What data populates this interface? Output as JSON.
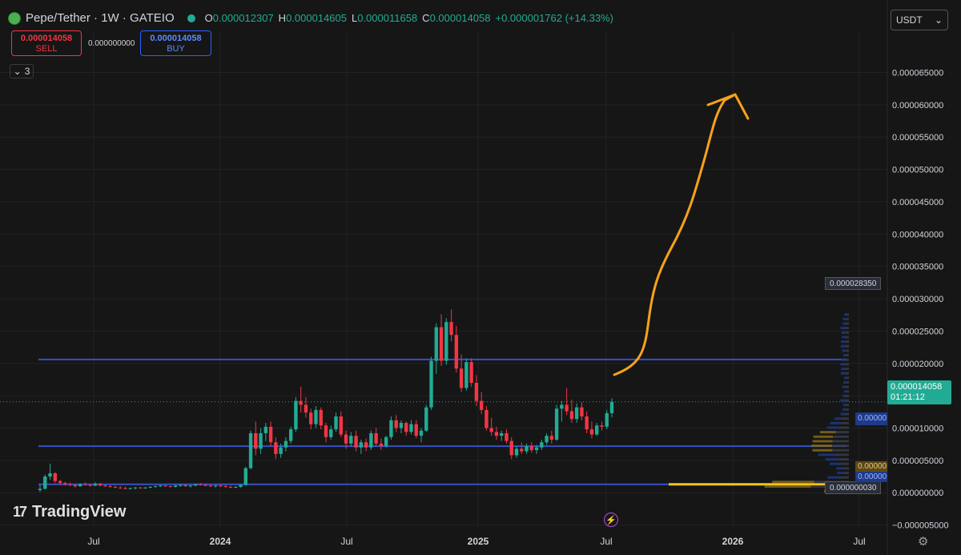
{
  "header": {
    "title": "Pepe/Tether · 1W · GATEIO",
    "open_label": "O",
    "open": "0.000012307",
    "high_label": "H",
    "high": "0.000014605",
    "low_label": "L",
    "low": "0.000011658",
    "close_label": "C",
    "close": "0.000014058",
    "change": "+0.000001762 (+14.33%)"
  },
  "trade": {
    "sell_price": "0.000014058",
    "sell_label": "SELL",
    "spread": "0.000000000",
    "buy_price": "0.000014058",
    "buy_label": "BUY"
  },
  "indicators": {
    "count": "3"
  },
  "currency": {
    "selected": "USDT"
  },
  "brand": {
    "name": "TradingView"
  },
  "price_label": {
    "value": "0.000014058",
    "countdown": "01:21:12"
  },
  "markers": {
    "high_tag": "0.000028350",
    "low_tag": "0.000000030",
    "vp_blue": "0.00000",
    "vp_gold": "0.00000",
    "vp_blue2": "0.00000"
  },
  "colors": {
    "bull": "#22ab94",
    "bear": "#f23645",
    "hline": "#3550c8",
    "arrow": "#f7a21b",
    "grid": "#222222",
    "text": "#d1d4dc"
  },
  "icons": {
    "bolt": "lightning-icon",
    "settings": "gear-icon",
    "chevron": "chevron-down-icon"
  },
  "chart_data": {
    "type": "candlestick",
    "y_axis_ticks": [
      "0.000065000",
      "0.000060000",
      "0.000055000",
      "0.000050000",
      "0.000045000",
      "0.000040000",
      "0.000035000",
      "0.000030000",
      "0.000025000",
      "0.000020000",
      "0.000015000",
      "0.000010000",
      "0.000005000",
      "0.000000000",
      "−0.000005000"
    ],
    "ylim": [
      -5.3e-06,
      7.15e-05
    ],
    "x_axis_ticks": [
      "Jul",
      "2024",
      "Jul",
      "2025",
      "Jul",
      "2026",
      "Jul"
    ],
    "horizontal_levels": [
      2.06e-05,
      7.2e-06,
      1.3e-06
    ],
    "last_price": 1.4058e-05,
    "ohlc_weekly": [
      [
        4e-07,
        1.2e-06,
        1e-07,
        6e-07
      ],
      [
        6e-07,
        2.8e-06,
        5e-07,
        2.5e-06
      ],
      [
        2.5e-06,
        4.5e-06,
        2e-06,
        3e-06
      ],
      [
        3e-06,
        3.2e-06,
        1.5e-06,
        1.8e-06
      ],
      [
        1.8e-06,
        2e-06,
        1.2e-06,
        1.5e-06
      ],
      [
        1.5e-06,
        1.7e-06,
        1.1e-06,
        1.3e-06
      ],
      [
        1.3e-06,
        1.6e-06,
        1e-06,
        1.2e-06
      ],
      [
        1.2e-06,
        1.4e-06,
        8e-07,
        1e-06
      ],
      [
        1e-06,
        1.5e-06,
        9e-07,
        1.3e-06
      ],
      [
        1.3e-06,
        1.6e-06,
        1.1e-06,
        1.2e-06
      ],
      [
        1.2e-06,
        1.4e-06,
        9e-07,
        1.1e-06
      ],
      [
        1.1e-06,
        1.6e-06,
        1e-06,
        1.4e-06
      ],
      [
        1.4e-06,
        1.5e-06,
        1e-06,
        1.1e-06
      ],
      [
        1.1e-06,
        1.3e-06,
        9e-07,
        1e-06
      ],
      [
        1e-06,
        1.2e-06,
        8e-07,
        9e-07
      ],
      [
        9e-07,
        1.1e-06,
        7e-07,
        8e-07
      ],
      [
        8e-07,
        1e-06,
        6e-07,
        7e-07
      ],
      [
        7e-07,
        9e-07,
        5e-07,
        6e-07
      ],
      [
        6e-07,
        8e-07,
        5e-07,
        7e-07
      ],
      [
        7e-07,
        9e-07,
        5e-07,
        8e-07
      ],
      [
        8e-07,
        9e-07,
        6e-07,
        7e-07
      ],
      [
        7e-07,
        9e-07,
        6e-07,
        8e-07
      ],
      [
        8e-07,
        1e-06,
        7e-07,
        9e-07
      ],
      [
        9e-07,
        1.1e-06,
        8e-07,
        1e-06
      ],
      [
        1e-06,
        1.2e-06,
        9e-07,
        1.1e-06
      ],
      [
        1.1e-06,
        1.2e-06,
        9e-07,
        1e-06
      ],
      [
        1e-06,
        1.1e-06,
        8e-07,
        9e-07
      ],
      [
        9e-07,
        1.2e-06,
        8e-07,
        1.1e-06
      ],
      [
        1.1e-06,
        1.3e-06,
        9e-07,
        1.2e-06
      ],
      [
        1.2e-06,
        1.3e-06,
        9e-07,
        1e-06
      ],
      [
        1e-06,
        1.2e-06,
        8e-07,
        1.1e-06
      ],
      [
        1.1e-06,
        1.4e-06,
        1e-06,
        1.3e-06
      ],
      [
        1.3e-06,
        1.5e-06,
        1.1e-06,
        1.2e-06
      ],
      [
        1.2e-06,
        1.4e-06,
        1e-06,
        1.1e-06
      ],
      [
        1.1e-06,
        1.3e-06,
        9e-07,
        1e-06
      ],
      [
        1e-06,
        1.2e-06,
        8e-07,
        1.1e-06
      ],
      [
        1.1e-06,
        1.3e-06,
        9e-07,
        1e-06
      ],
      [
        1e-06,
        1.2e-06,
        8e-07,
        9e-07
      ],
      [
        9e-07,
        1.1e-06,
        7e-07,
        8e-07
      ],
      [
        8e-07,
        1e-06,
        7e-07,
        9e-07
      ],
      [
        9e-07,
        1.3e-06,
        8e-07,
        1.2e-06
      ],
      [
        1.2e-06,
        4e-06,
        1.1e-06,
        3.8e-06
      ],
      [
        3.8e-06,
        9.6e-06,
        3.6e-06,
        9.2e-06
      ],
      [
        9.2e-06,
        1.1e-05,
        5.8e-06,
        6.8e-06
      ],
      [
        6.8e-06,
        1e-05,
        6e-06,
        9.2e-06
      ],
      [
        9.2e-06,
        1.08e-05,
        8e-06,
        1.02e-05
      ],
      [
        1.02e-05,
        1.1e-05,
        7.2e-06,
        7.8e-06
      ],
      [
        7.8e-06,
        8.6e-06,
        5.2e-06,
        6e-06
      ],
      [
        6e-06,
        7.6e-06,
        5.4e-06,
        7e-06
      ],
      [
        7e-06,
        8.6e-06,
        6.4e-06,
        8e-06
      ],
      [
        8e-06,
        1.02e-05,
        7.6e-06,
        9.8e-06
      ],
      [
        9.8e-06,
        1.48e-05,
        9.4e-06,
        1.42e-05
      ],
      [
        1.42e-05,
        1.64e-05,
        1.24e-05,
        1.36e-05
      ],
      [
        1.36e-05,
        1.48e-05,
        1.16e-05,
        1.24e-05
      ],
      [
        1.24e-05,
        1.3e-05,
        9.8e-06,
        1.06e-05
      ],
      [
        1.06e-05,
        1.34e-05,
        1e-05,
        1.28e-05
      ],
      [
        1.28e-05,
        1.32e-05,
        9.8e-06,
        1.04e-05
      ],
      [
        1.04e-05,
        1.08e-05,
        7.8e-06,
        8.6e-06
      ],
      [
        8.6e-06,
        1.04e-05,
        8.2e-06,
        9.8e-06
      ],
      [
        9.8e-06,
        1.24e-05,
        9.4e-06,
        1.18e-05
      ],
      [
        1.18e-05,
        1.26e-05,
        8.6e-06,
        9e-06
      ],
      [
        9e-06,
        9.6e-06,
        6.8e-06,
        7.6e-06
      ],
      [
        7.6e-06,
        9.4e-06,
        7.2e-06,
        8.8e-06
      ],
      [
        8.8e-06,
        9.6e-06,
        6.4e-06,
        7e-06
      ],
      [
        7e-06,
        8.2e-06,
        6e-06,
        7.8e-06
      ],
      [
        7.8e-06,
        8.4e-06,
        6.4e-06,
        7e-06
      ],
      [
        7e-06,
        9.6e-06,
        6.6e-06,
        9.2e-06
      ],
      [
        9.2e-06,
        1e-05,
        7.2e-06,
        7.6e-06
      ],
      [
        7.6e-06,
        8.4e-06,
        6.6e-06,
        7.2e-06
      ],
      [
        7.2e-06,
        8.8e-06,
        7e-06,
        8.6e-06
      ],
      [
        8.6e-06,
        1.18e-05,
        8.2e-06,
        1.12e-05
      ],
      [
        1.12e-05,
        1.2e-05,
        9.4e-06,
        1e-05
      ],
      [
        1e-05,
        1.12e-05,
        9.2e-06,
        1.08e-05
      ],
      [
        1.08e-05,
        1.1e-05,
        8.8e-06,
        9.4e-06
      ],
      [
        9.4e-06,
        1.12e-05,
        9e-06,
        1.06e-05
      ],
      [
        1.06e-05,
        1.12e-05,
        8.4e-06,
        8.8e-06
      ],
      [
        8.8e-06,
        1e-05,
        7.8e-06,
        9.6e-06
      ],
      [
        9.6e-06,
        1.36e-05,
        9.4e-06,
        1.32e-05
      ],
      [
        1.32e-05,
        2.1e-05,
        1.28e-05,
        2.04e-05
      ],
      [
        2.04e-05,
        2.62e-05,
        1.84e-05,
        2.56e-05
      ],
      [
        2.56e-05,
        2.76e-05,
        1.96e-05,
        2.04e-05
      ],
      [
        2.04e-05,
        2.7e-05,
        1.98e-05,
        2.64e-05
      ],
      [
        2.64e-05,
        2.835e-05,
        2.34e-05,
        2.44e-05
      ],
      [
        2.44e-05,
        2.58e-05,
        1.86e-05,
        1.92e-05
      ],
      [
        1.92e-05,
        2.14e-05,
        1.56e-05,
        1.62e-05
      ],
      [
        1.62e-05,
        2.08e-05,
        1.58e-05,
        2.02e-05
      ],
      [
        2.02e-05,
        2.08e-05,
        1.64e-05,
        1.7e-05
      ],
      [
        1.7e-05,
        1.82e-05,
        1.34e-05,
        1.42e-05
      ],
      [
        1.42e-05,
        1.56e-05,
        1.22e-05,
        1.28e-05
      ],
      [
        1.28e-05,
        1.34e-05,
        9.6e-06,
        1e-05
      ],
      [
        1e-05,
        1.16e-05,
        8.8e-06,
        9.4e-06
      ],
      [
        9.4e-06,
        1.02e-05,
        8.2e-06,
        8.8e-06
      ],
      [
        8.8e-06,
        9.6e-06,
        8e-06,
        9.2e-06
      ],
      [
        9.2e-06,
        9.8e-06,
        7.6e-06,
        8e-06
      ],
      [
        8e-06,
        8.6e-06,
        5.2e-06,
        5.8e-06
      ],
      [
        5.8e-06,
        7.2e-06,
        5.4e-06,
        6.8e-06
      ],
      [
        6.8e-06,
        7.8e-06,
        6e-06,
        6.4e-06
      ],
      [
        6.4e-06,
        7.6e-06,
        6e-06,
        7.2e-06
      ],
      [
        7.2e-06,
        7.8e-06,
        6.2e-06,
        6.6e-06
      ],
      [
        6.6e-06,
        7.4e-06,
        6e-06,
        7e-06
      ],
      [
        7e-06,
        8.2e-06,
        6.6e-06,
        7.8e-06
      ],
      [
        7.8e-06,
        9.2e-06,
        7.4e-06,
        8.8e-06
      ],
      [
        8.8e-06,
        9.6e-06,
        7.6e-06,
        8.2e-06
      ],
      [
        8.2e-06,
        1.36e-05,
        8e-06,
        1.3e-05
      ],
      [
        1.3e-05,
        1.42e-05,
        1.1e-05,
        1.36e-05
      ],
      [
        1.36e-05,
        1.62e-05,
        1.2e-05,
        1.26e-05
      ],
      [
        1.26e-05,
        1.44e-05,
        1.08e-05,
        1.14e-05
      ],
      [
        1.14e-05,
        1.38e-05,
        1.08e-05,
        1.32e-05
      ],
      [
        1.32e-05,
        1.4e-05,
        1.12e-05,
        1.18e-05
      ],
      [
        1.18e-05,
        1.26e-05,
        9.2e-06,
        9.8e-06
      ],
      [
        9.8e-06,
        1.1e-05,
        8.4e-06,
        9e-06
      ],
      [
        9e-06,
        1.08e-05,
        8.8e-06,
        1.04e-05
      ],
      [
        1.04e-05,
        1.1e-05,
        9.6e-06,
        1.02e-05
      ],
      [
        1.02e-05,
        1.28e-05,
        9.8e-06,
        1.23e-05
      ],
      [
        1.23e-05,
        1.46e-05,
        1.166e-05,
        1.406e-05
      ]
    ]
  }
}
